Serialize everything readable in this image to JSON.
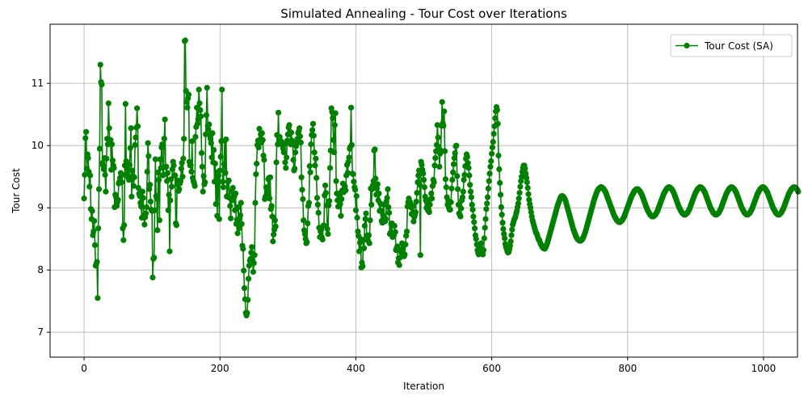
{
  "chart_data": {
    "type": "line",
    "title": "Simulated Annealing - Tour Cost over Iterations",
    "xlabel": "Iteration",
    "ylabel": "Tour Cost",
    "xlim": [
      -50,
      1050
    ],
    "ylim": [
      6.6,
      11.95
    ],
    "xticks": [
      0,
      200,
      400,
      600,
      800,
      1000
    ],
    "yticks": [
      7,
      8,
      9,
      10,
      11
    ],
    "grid": true,
    "legend_position": "top-right",
    "series": [
      {
        "name": "Tour Cost (SA)",
        "color": "#008000",
        "marker": "circle",
        "x_start": 0,
        "x_step": 1,
        "values": [
          9.15,
          9.53,
          10.12,
          10.22,
          9.63,
          9.86,
          9.8,
          9.58,
          9.34,
          9.52,
          8.98,
          8.82,
          8.95,
          8.56,
          8.62,
          8.79,
          8.4,
          8.07,
          8.1,
          8.13,
          7.55,
          8.67,
          9.3,
          9.95,
          11.3,
          11.02,
          10.98,
          9.72,
          9.68,
          9.62,
          9.8,
          9.53,
          9.26,
          9.79,
          10.11,
          10.02,
          10.68,
          10.28,
          10.05,
          10.09,
          9.61,
          10.02,
          9.76,
          9.68,
          9.64,
          9.01,
          9.21,
          9.18,
          9.03,
          9.09,
          9.13,
          9.39,
          9.42,
          9.48,
          9.56,
          9.41,
          9.53,
          8.67,
          8.48,
          8.72,
          9.68,
          10.67,
          9.75,
          9.62,
          9.54,
          9.49,
          9.45,
          9.69,
          9.96,
          10.28,
          9.18,
          9.6,
          9.51,
          9.35,
          9.49,
          10.01,
          10.13,
          10.29,
          10.6,
          10.31,
          9.32,
          9.23,
          9.19,
          9.08,
          9.02,
          8.84,
          9.26,
          9.16,
          8.88,
          8.73,
          8.85,
          8.91,
          9.01,
          9.58,
          10.04,
          9.83,
          9.3,
          9.37,
          9.1,
          8.97,
          8.95,
          7.88,
          8.18,
          8.2,
          8.96,
          9.78,
          9.19,
          9.15,
          8.64,
          9.57,
          9.45,
          8.8,
          9.78,
          9.64,
          9.97,
          10.02,
          9.52,
          9.53,
          10.11,
          10.42,
          9.65,
          9.66,
          9.43,
          9.56,
          8.96,
          9.21,
          8.3,
          9.12,
          9.46,
          9.34,
          9.62,
          9.74,
          9.68,
          9.52,
          9.52,
          8.75,
          8.72,
          9.38,
          9.44,
          9.27,
          9.3,
          9.39,
          9.43,
          9.63,
          9.72,
          9.5,
          9.79,
          10.11,
          11.68,
          11.69,
          10.88,
          10.7,
          10.61,
          10.76,
          10.82,
          9.74,
          9.68,
          9.68,
          9.58,
          10.07,
          9.48,
          9.43,
          9.4,
          9.35,
          10.14,
          10.3,
          10.61,
          10.35,
          10.42,
          10.9,
          10.68,
          10.57,
          10.47,
          9.88,
          9.66,
          9.26,
          9.51,
          9.38,
          9.41,
          10.18,
          10.49,
          10.93,
          10.32,
          10.26,
          10.34,
          10.17,
          10.11,
          10.04,
          9.81,
          10.2,
          9.73,
          9.93,
          9.42,
          9.71,
          9.06,
          9.57,
          8.87,
          9.43,
          9.52,
          8.82,
          9.6,
          9.82,
          10.07,
          10.9,
          9.42,
          9.33,
          9.7,
          10.08,
          9.56,
          10.1,
          9.18,
          9.19,
          9.42,
          9.44,
          9.16,
          9.03,
          8.83,
          9.26,
          9.12,
          9.32,
          9.16,
          9.18,
          8.96,
          9.23,
          8.74,
          8.81,
          8.59,
          9.01,
          8.67,
          8.83,
          8.88,
          9.08,
          8.74,
          8.39,
          8.34,
          7.99,
          7.71,
          7.53,
          7.31,
          7.27,
          7.31,
          7.52,
          7.86,
          8.07,
          8.15,
          8.18,
          8.28,
          8.37,
          8.16,
          7.97,
          8.11,
          8.24,
          9.08,
          9.54,
          9.71,
          10.01,
          10.08,
          9.97,
          10.27,
          10.05,
          10.18,
          10.05,
          10.2,
          10.09,
          9.84,
          9.77,
          9.14,
          9.18,
          9.33,
          9.22,
          9.29,
          9.46,
          9.48,
          9.15,
          9.49,
          8.98,
          9.03,
          8.86,
          8.46,
          8.57,
          8.65,
          8.8,
          8.7,
          9.73,
          10.17,
          10.02,
          10.53,
          10.05,
          10.14,
          10.07,
          10.07,
          10.05,
          10.0,
          9.95,
          9.89,
          10.02,
          9.73,
          9.64,
          9.81,
          10.08,
          10.18,
          10.29,
          10.33,
          10.22,
          10.02,
          10.21,
          10.08,
          10.04,
          9.77,
          9.6,
          9.63,
          9.89,
          9.99,
          10.04,
          10.11,
          10.2,
          10.23,
          10.28,
          10.15,
          10.05,
          9.49,
          9.29,
          9.14,
          8.8,
          8.64,
          8.58,
          8.5,
          8.43,
          8.45,
          8.75,
          9.03,
          9.08,
          9.67,
          9.57,
          10.02,
          10.17,
          10.25,
          10.35,
          10.16,
          9.89,
          9.68,
          9.79,
          9.48,
          9.16,
          9.05,
          8.92,
          8.68,
          8.53,
          8.62,
          8.65,
          8.53,
          8.49,
          8.71,
          8.72,
          9.2,
          9.36,
          9.24,
          9.04,
          8.66,
          8.58,
          9.04,
          9.11,
          9.64,
          9.92,
          10.6,
          10.54,
          10.44,
          10.09,
          9.89,
          10.33,
          10.52,
          9.43,
          9.23,
          9.12,
          9.02,
          9.23,
          9.21,
          9.06,
          8.87,
          9.14,
          9.28,
          9.39,
          9.25,
          9.37,
          9.34,
          9.28,
          9.52,
          9.69,
          9.56,
          9.74,
          9.81,
          9.95,
          9.98,
          10.61,
          10.01,
          9.55,
          9.54,
          9.42,
          9.33,
          9.29,
          8.96,
          9.19,
          8.84,
          8.62,
          8.55,
          8.3,
          8.44,
          8.5,
          8.04,
          8.12,
          8.06,
          8.48,
          8.35,
          8.71,
          8.82,
          8.91,
          8.55,
          8.51,
          8.47,
          8.56,
          8.43,
          8.8,
          9.31,
          9.05,
          9.3,
          9.36,
          9.43,
          9.92,
          9.94,
          9.47,
          9.21,
          9.31,
          9.38,
          9.12,
          9.23,
          8.95,
          9.07,
          8.95,
          8.79,
          8.76,
          8.88,
          9.05,
          8.85,
          8.78,
          8.82,
          9.1,
          9.16,
          9.3,
          9.01,
          8.92,
          8.58,
          8.6,
          8.74,
          8.75,
          8.53,
          8.54,
          8.56,
          8.71,
          8.61,
          8.32,
          8.35,
          8.38,
          8.12,
          8.19,
          8.08,
          8.2,
          8.31,
          8.28,
          8.43,
          8.35,
          8.26,
          8.22,
          8.25,
          8.41,
          8.55,
          8.62,
          9.02,
          9.09,
          9.15,
          9.03,
          9.09,
          9.01,
          8.9,
          9.01,
          9.03,
          8.78,
          8.85,
          8.89,
          8.93,
          9.1,
          9.24,
          9.41,
          9.52,
          9.6,
          9.37,
          8.24,
          9.74,
          9.69,
          9.61,
          9.55,
          9.45,
          9.33,
          9.18,
          9.12,
          9.0,
          9.07,
          8.96,
          8.97,
          8.93,
          9.05,
          9.14,
          9.23,
          9.15,
          9.35,
          9.45,
          9.41,
          9.68,
          9.8,
          9.91,
          10.01,
          10.33,
          10.13,
          9.98,
          9.66,
          9.87,
          9.92,
          10.32,
          10.7,
          10.36,
          10.32,
          10.55,
          9.91,
          9.46,
          9.33,
          9.17,
          9.05,
          9.11,
          9.0,
          8.97,
          8.97,
          9.09,
          9.31,
          9.45,
          9.57,
          9.7,
          9.8,
          9.88,
          9.99,
          10.0,
          9.51,
          9.3,
          9.05,
          8.91,
          8.89,
          8.86,
          8.99,
          9.12,
          9.17,
          9.26,
          9.45,
          9.53,
          9.67,
          9.79,
          9.86,
          9.82,
          9.72,
          9.64,
          9.52,
          9.37,
          9.26,
          9.17,
          9.05,
          8.97,
          8.86,
          8.77,
          8.67,
          8.56,
          8.5,
          8.41,
          8.32,
          8.27,
          8.25,
          8.29,
          8.36,
          8.43,
          8.34,
          8.27,
          8.25,
          8.32,
          8.51,
          8.68,
          8.82,
          8.98,
          9.07,
          9.17,
          9.31,
          9.43,
          9.55,
          9.66,
          9.75,
          9.87,
          9.97,
          10.06,
          10.19,
          10.31,
          10.44,
          10.55,
          10.62,
          10.57,
          10.35,
          9.84,
          9.62,
          9.4,
          9.21,
          9.01,
          8.89,
          8.76,
          8.66,
          8.58,
          8.51,
          8.42,
          8.37,
          8.34,
          8.3,
          8.28,
          8.29,
          8.33,
          8.39,
          8.46,
          8.56,
          8.65,
          8.73,
          8.77,
          8.81,
          8.83,
          8.86,
          8.91,
          8.95,
          9.01,
          9.07,
          9.15,
          9.24,
          9.34,
          9.43,
          9.5,
          9.58,
          9.64,
          9.68,
          9.68,
          9.63,
          9.55,
          9.48,
          9.41,
          9.32,
          9.22,
          9.13,
          9.06,
          9.0,
          8.93,
          8.86,
          8.8,
          8.76,
          8.72,
          8.68,
          8.64,
          8.6,
          8.59,
          8.56,
          8.52,
          8.49,
          8.48,
          8.45,
          8.42,
          8.4,
          8.38,
          8.36,
          8.35,
          8.35,
          8.34,
          8.36,
          8.38,
          8.41,
          8.44,
          8.48,
          8.52,
          8.56,
          8.6,
          8.64,
          8.68,
          8.72,
          8.76,
          8.8,
          8.84,
          8.88,
          8.92,
          8.96,
          9.0,
          9.04,
          9.07,
          9.1,
          9.13,
          9.16,
          9.18,
          9.19,
          9.19,
          9.18,
          9.17,
          9.15,
          9.13,
          9.1,
          9.06,
          9.02,
          8.98,
          8.94,
          8.9,
          8.86,
          8.82,
          8.78,
          8.74,
          8.7,
          8.66,
          8.63,
          8.6,
          8.57,
          8.54,
          8.52,
          8.5,
          8.49,
          8.48,
          8.47,
          8.47,
          8.47,
          8.48,
          8.49,
          8.51,
          8.53,
          8.56,
          8.59,
          8.62,
          8.66,
          8.7,
          8.74,
          8.78,
          8.82,
          8.86,
          8.9,
          8.94,
          8.98,
          9.02,
          9.06,
          9.1,
          9.14,
          9.17,
          9.2,
          9.23,
          9.26,
          9.28,
          9.3,
          9.31,
          9.32,
          9.33,
          9.33,
          9.33,
          9.32,
          9.31,
          9.3,
          9.28,
          9.26,
          9.24,
          9.21,
          9.18,
          9.15,
          9.12,
          9.09,
          9.06,
          9.03,
          9.0,
          8.97,
          8.94,
          8.91,
          8.88,
          8.86,
          8.84,
          8.82,
          8.8,
          8.79,
          8.78,
          8.77,
          8.77,
          8.77,
          8.78,
          8.79,
          8.8,
          8.82,
          8.84,
          8.86,
          8.89,
          8.92,
          8.95,
          8.98,
          9.01,
          9.04,
          9.07,
          9.1,
          9.13,
          9.16,
          9.19,
          9.21,
          9.23,
          9.25,
          9.27,
          9.28,
          9.29,
          9.3,
          9.3,
          9.3,
          9.29,
          9.28,
          9.27,
          9.25,
          9.23,
          9.21,
          9.18,
          9.15,
          9.12,
          9.09,
          9.06,
          9.03,
          9.0,
          8.97,
          8.95,
          8.93,
          8.91,
          8.89,
          8.88,
          8.87,
          8.86,
          8.86,
          8.86,
          8.87,
          8.88,
          8.89,
          8.91,
          8.93,
          8.95,
          8.98,
          9.01,
          9.04,
          9.07,
          9.1,
          9.13,
          9.16,
          9.19,
          9.22,
          9.24,
          9.26,
          9.28,
          9.3,
          9.31,
          9.32,
          9.33,
          9.33,
          9.33,
          9.32,
          9.31,
          9.3,
          9.28,
          9.26,
          9.24,
          9.21,
          9.18,
          9.15,
          9.12,
          9.09,
          9.06,
          9.03,
          9.0,
          8.98,
          8.96,
          8.94,
          8.92,
          8.91,
          8.9,
          8.89,
          8.89,
          8.89,
          8.9,
          8.91,
          8.92,
          8.94,
          8.96,
          8.98,
          9.01,
          9.04,
          9.07,
          9.1,
          9.13,
          9.16,
          9.19,
          9.22,
          9.24,
          9.26,
          9.28,
          9.3,
          9.31,
          9.32,
          9.33,
          9.33,
          9.33,
          9.32,
          9.31,
          9.3,
          9.28,
          9.26,
          9.24,
          9.21,
          9.18,
          9.15,
          9.12,
          9.09,
          9.06,
          9.03,
          9.0,
          8.98,
          8.96,
          8.94,
          8.92,
          8.91,
          8.9,
          8.89,
          8.89,
          8.89,
          8.9,
          8.91,
          8.92,
          8.94,
          8.96,
          8.98,
          9.01,
          9.04,
          9.07,
          9.1,
          9.13,
          9.16,
          9.19,
          9.22,
          9.24,
          9.26,
          9.28,
          9.3,
          9.31,
          9.32,
          9.33,
          9.33,
          9.33,
          9.32,
          9.31,
          9.3,
          9.28,
          9.26,
          9.24,
          9.21,
          9.18,
          9.15,
          9.12,
          9.09,
          9.06,
          9.03,
          9.0,
          8.98,
          8.96,
          8.94,
          8.92,
          8.91,
          8.9,
          8.89,
          8.89,
          8.89,
          8.9,
          8.91,
          8.92,
          8.94,
          8.96,
          8.98,
          9.01,
          9.04,
          9.07,
          9.1,
          9.13,
          9.16,
          9.19,
          9.22,
          9.24,
          9.26,
          9.28,
          9.3,
          9.31,
          9.32,
          9.33,
          9.33,
          9.33,
          9.32,
          9.31,
          9.3,
          9.28,
          9.26,
          9.24,
          9.21,
          9.18,
          9.15,
          9.12,
          9.09,
          9.06,
          9.03,
          9.0,
          8.98,
          8.96,
          8.94,
          8.92,
          8.91,
          8.9,
          8.89,
          8.89,
          8.89,
          8.9,
          8.91,
          8.92,
          8.94,
          8.96,
          8.98,
          9.01,
          9.04,
          9.07,
          9.1,
          9.13,
          9.16,
          9.19,
          9.22,
          9.24,
          9.26,
          9.28,
          9.3,
          9.31,
          9.32,
          9.33,
          9.33,
          9.33,
          9.32,
          9.31,
          9.3,
          9.28,
          9.26
        ]
      }
    ]
  }
}
